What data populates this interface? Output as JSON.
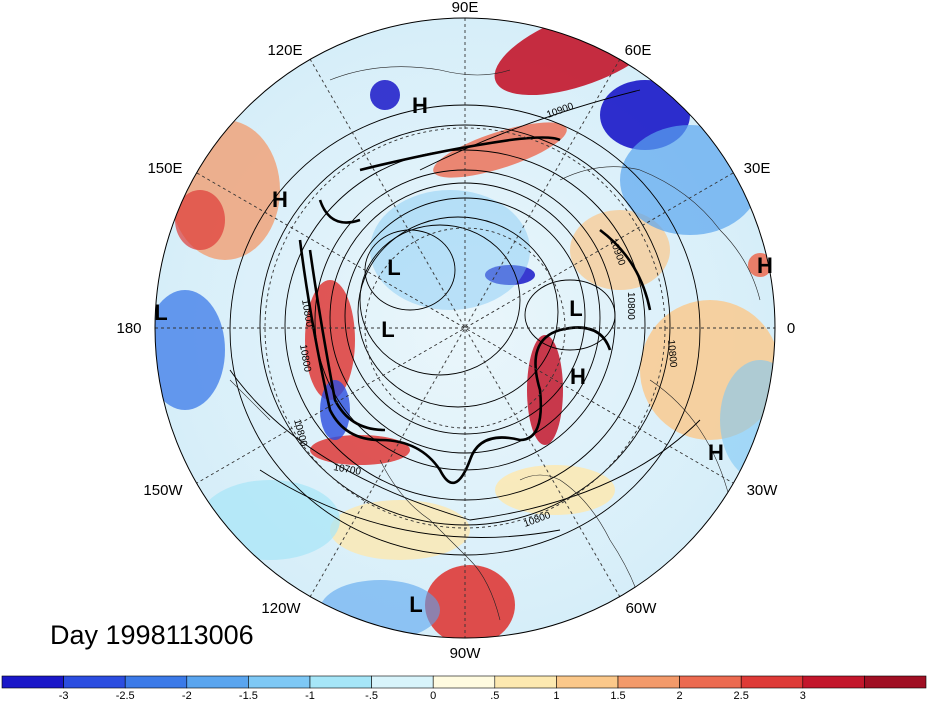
{
  "title": "Day 1998113006",
  "longitude_labels": {
    "lon_90e": "90E",
    "lon_120e": "120E",
    "lon_60e": "60E",
    "lon_150e": "150E",
    "lon_30e": "30E",
    "lon_180": "180",
    "lon_0": "0",
    "lon_150w": "150W",
    "lon_30w": "30W",
    "lon_120w": "120W",
    "lon_60w": "60W",
    "lon_90w": "90W"
  },
  "pressure_centers": [
    {
      "kind": "H",
      "label": "H"
    },
    {
      "kind": "H",
      "label": "H"
    },
    {
      "kind": "H",
      "label": "H"
    },
    {
      "kind": "H",
      "label": "H"
    },
    {
      "kind": "H",
      "label": "H"
    },
    {
      "kind": "L",
      "label": "L"
    },
    {
      "kind": "L",
      "label": "L"
    },
    {
      "kind": "L",
      "label": "L"
    },
    {
      "kind": "L",
      "label": "L"
    },
    {
      "kind": "L",
      "label": "L"
    }
  ],
  "contour_labels": [
    "10900",
    "10800",
    "10800",
    "10800",
    "10800",
    "10700",
    "10900",
    "10800",
    "10800"
  ],
  "colorbar": {
    "colors": [
      "#1a17c8",
      "#2b4de0",
      "#3b7ae8",
      "#5aa5ef",
      "#7ec8f5",
      "#a6e6f8",
      "#d8f4fb",
      "#fffbe0",
      "#fde9b0",
      "#fbc88a",
      "#f39a6a",
      "#ec6a50",
      "#de3a37",
      "#c3162b",
      "#a00f23"
    ],
    "tick_labels": [
      "-3",
      "-2.5",
      "-2",
      "-1.5",
      "-1",
      "-.5",
      "0",
      ".5",
      "1",
      "1.5",
      "2",
      "2.5",
      "3"
    ]
  }
}
